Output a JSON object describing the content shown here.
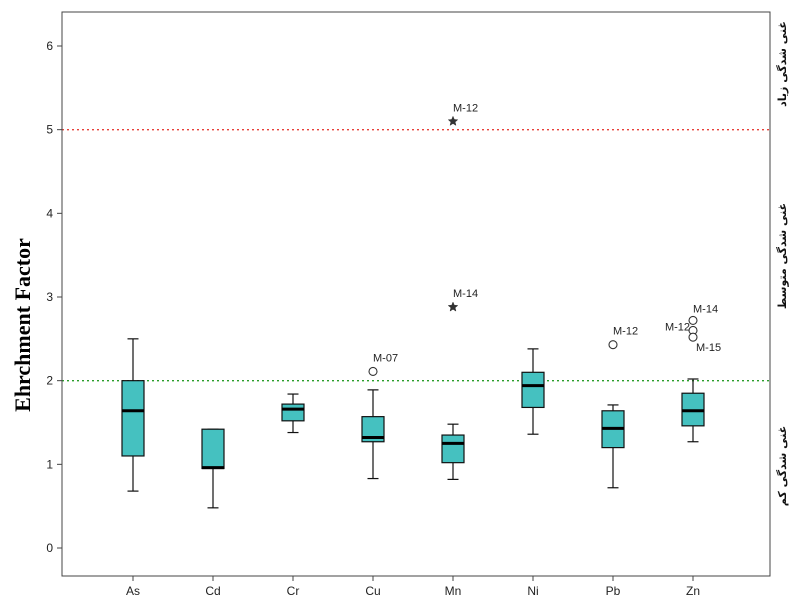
{
  "chart_data": {
    "type": "box",
    "ylabel": "Ehrchment Factor",
    "xlabel": "",
    "ylim": [
      -0.3,
      6.4
    ],
    "yticks": [
      0,
      1,
      2,
      3,
      4,
      5,
      6
    ],
    "categories": [
      "As",
      "Cd",
      "Cr",
      "Cu",
      "Mn",
      "Ni",
      "Pb",
      "Zn"
    ],
    "box_color": "#45c1c0",
    "boxes": [
      {
        "category": "As",
        "whisker_low": 0.68,
        "q1": 1.1,
        "median": 1.64,
        "q3": 2.0,
        "whisker_high": 2.5
      },
      {
        "category": "Cd",
        "whisker_low": 0.48,
        "q1": 0.95,
        "median": 0.96,
        "q3": 1.42,
        "whisker_high": 1.42
      },
      {
        "category": "Cr",
        "whisker_low": 1.38,
        "q1": 1.52,
        "median": 1.66,
        "q3": 1.72,
        "whisker_high": 1.84
      },
      {
        "category": "Cu",
        "whisker_low": 0.83,
        "q1": 1.27,
        "median": 1.32,
        "q3": 1.57,
        "whisker_high": 1.89
      },
      {
        "category": "Mn",
        "whisker_low": 0.82,
        "q1": 1.02,
        "median": 1.25,
        "q3": 1.35,
        "whisker_high": 1.48
      },
      {
        "category": "Ni",
        "whisker_low": 1.36,
        "q1": 1.68,
        "median": 1.94,
        "q3": 2.1,
        "whisker_high": 2.38
      },
      {
        "category": "Pb",
        "whisker_low": 0.72,
        "q1": 1.2,
        "median": 1.43,
        "q3": 1.64,
        "whisker_high": 1.71
      },
      {
        "category": "Zn",
        "whisker_low": 1.27,
        "q1": 1.46,
        "median": 1.64,
        "q3": 1.85,
        "whisker_high": 2.02
      }
    ],
    "outliers": [
      {
        "category": "Cu",
        "value": 2.11,
        "label": "M-07",
        "marker": "circle"
      },
      {
        "category": "Mn",
        "value": 2.88,
        "label": "M-14",
        "marker": "star"
      },
      {
        "category": "Mn",
        "value": 5.1,
        "label": "M-12",
        "marker": "star"
      },
      {
        "category": "Pb",
        "value": 2.43,
        "label": "M-12",
        "marker": "circle"
      },
      {
        "category": "Zn",
        "value": 2.72,
        "label": "M-14",
        "marker": "circle"
      },
      {
        "category": "Zn",
        "value": 2.6,
        "label": "M-12",
        "marker": "circle"
      },
      {
        "category": "Zn",
        "value": 2.52,
        "label": "M-15",
        "marker": "circle"
      }
    ],
    "reference_lines": [
      {
        "value": 5,
        "color": "#e8413a",
        "style": "dotted"
      },
      {
        "value": 2,
        "color": "#2a9d2a",
        "style": "dotted"
      }
    ],
    "zone_labels": [
      {
        "text": "غنی شدگی زیاد",
        "zone": "high"
      },
      {
        "text": "غنی شدگی متوسط",
        "zone": "moderate"
      },
      {
        "text": "غنی شدگی کم",
        "zone": "low"
      }
    ],
    "grid": false,
    "legend": "none"
  }
}
